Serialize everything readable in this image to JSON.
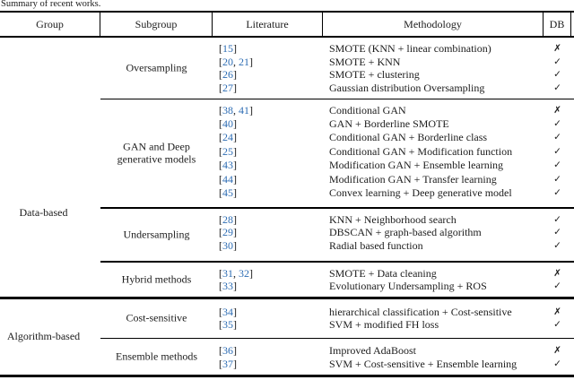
{
  "caption": "Summary of recent works.",
  "table": {
    "columns": [
      "Group",
      "Subgroup",
      "Literature",
      "Methodology",
      "DB"
    ],
    "db_true_glyph": "✓",
    "db_false_glyph": "✗",
    "citation_color": "#2e6db4",
    "groups": [
      {
        "name": "Data-based",
        "subgroups": [
          {
            "name": "Oversampling",
            "rows": [
              {
                "citations": [
                  "15"
                ],
                "methodology": "SMOTE (KNN + linear combination)",
                "db": false
              },
              {
                "citations": [
                  "20",
                  "21"
                ],
                "methodology": "SMOTE + KNN",
                "db": true
              },
              {
                "citations": [
                  "26"
                ],
                "methodology": "SMOTE + clustering",
                "db": true
              },
              {
                "citations": [
                  "27"
                ],
                "methodology": "Gaussian distribution Oversampling",
                "db": true
              }
            ]
          },
          {
            "name": "GAN and Deep generative models",
            "rows": [
              {
                "citations": [
                  "38",
                  "41"
                ],
                "methodology": "Conditional GAN",
                "db": false
              },
              {
                "citations": [
                  "40"
                ],
                "methodology": "GAN + Borderline SMOTE",
                "db": true
              },
              {
                "citations": [
                  "24"
                ],
                "methodology": "Conditional GAN + Borderline class",
                "db": true
              },
              {
                "citations": [
                  "25"
                ],
                "methodology": "Conditional GAN + Modification function",
                "db": true
              },
              {
                "citations": [
                  "43"
                ],
                "methodology": "Modification GAN + Ensemble learning",
                "db": true
              },
              {
                "citations": [
                  "44"
                ],
                "methodology": "Modification GAN + Transfer learning",
                "db": true
              },
              {
                "citations": [
                  "45"
                ],
                "methodology": "Convex learning + Deep generative model",
                "db": true
              }
            ]
          },
          {
            "name": "Undersampling",
            "rows": [
              {
                "citations": [
                  "28"
                ],
                "methodology": "KNN + Neighborhood search",
                "db": true
              },
              {
                "citations": [
                  "29"
                ],
                "methodology": "DBSCAN + graph-based algorithm",
                "db": true
              },
              {
                "citations": [
                  "30"
                ],
                "methodology": "Radial based function",
                "db": true
              }
            ]
          },
          {
            "name": "Hybrid methods",
            "rows": [
              {
                "citations": [
                  "31",
                  "32"
                ],
                "methodology": "SMOTE + Data cleaning",
                "db": false
              },
              {
                "citations": [
                  "33"
                ],
                "methodology": "Evolutionary Undersampling + ROS",
                "db": true
              }
            ]
          }
        ]
      },
      {
        "name": "Algorithm-based",
        "subgroups": [
          {
            "name": "Cost-sensitive",
            "rows": [
              {
                "citations": [
                  "34"
                ],
                "methodology": "hierarchical classification + Cost-sensitive",
                "db": false
              },
              {
                "citations": [
                  "35"
                ],
                "methodology": "SVM + modified FH loss",
                "db": true
              }
            ]
          },
          {
            "name": "Ensemble methods",
            "rows": [
              {
                "citations": [
                  "36"
                ],
                "methodology": "Improved AdaBoost",
                "db": false
              },
              {
                "citations": [
                  "37"
                ],
                "methodology": "SVM + Cost-sensitive + Ensemble learning",
                "db": true
              }
            ]
          }
        ]
      }
    ]
  }
}
